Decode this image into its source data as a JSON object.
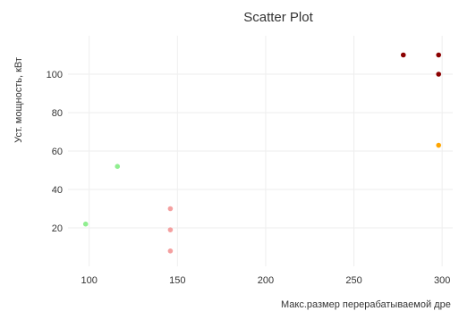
{
  "chart_data": {
    "type": "scatter",
    "title": "Scatter Plot",
    "xlabel": "Макс.размер перерабатываемой дре",
    "ylabel": "Уст. мощность, кВт",
    "xlim": [
      88,
      306
    ],
    "ylim": [
      0,
      120
    ],
    "xticks": [
      100,
      150,
      200,
      250,
      300
    ],
    "yticks": [
      20,
      40,
      60,
      80,
      100
    ],
    "grid": true,
    "legend": "none",
    "colors": {
      "green": "#90ee90",
      "pink": "#f4a0a0",
      "darkred": "#8b0000",
      "orange": "#ffa500",
      "grid": "#eeeeee",
      "text": "#333333"
    },
    "points": [
      {
        "x": 98,
        "y": 22,
        "color": "green"
      },
      {
        "x": 116,
        "y": 52,
        "color": "green"
      },
      {
        "x": 146,
        "y": 30,
        "color": "pink"
      },
      {
        "x": 146,
        "y": 19,
        "color": "pink"
      },
      {
        "x": 146,
        "y": 8,
        "color": "pink"
      },
      {
        "x": 278,
        "y": 110,
        "color": "darkred"
      },
      {
        "x": 298,
        "y": 110,
        "color": "darkred"
      },
      {
        "x": 298,
        "y": 100,
        "color": "darkred"
      },
      {
        "x": 298,
        "y": 63,
        "color": "orange"
      }
    ]
  }
}
